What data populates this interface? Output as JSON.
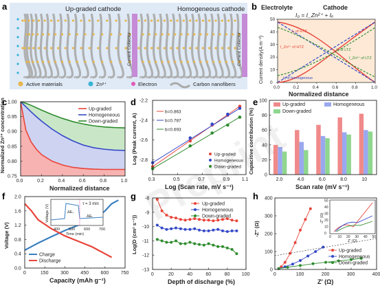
{
  "panel_labels": {
    "a": "a",
    "b": "b",
    "c": "c",
    "d": "d",
    "e": "e",
    "f": "f",
    "g": "g",
    "h": "h"
  },
  "panel_a": {
    "title_left": "Up-graded cathode",
    "title_right": "Homogeneous cathode",
    "collector_label": "Current Collector",
    "legend": [
      "Active materials",
      "Zn²⁺",
      "Electron",
      "Carbon nanofibers"
    ],
    "colors": {
      "background": "#dfeaf6",
      "fiber": "#a9a9a9",
      "active": "#e8b64c",
      "zn": "#37b4d6",
      "electron": "#e05ab8",
      "collector": "#c58bd6"
    }
  },
  "panel_b": {
    "header_left": "Electrolyte",
    "header_right": "Cathode",
    "equation": "I₀ = I_Zn²⁺ + Iₑ",
    "xlabel": "Normalized distance",
    "ylabel": "Current density(A m⁻²)",
    "curve_labels": [
      "Iₑ of HTZ",
      "I_Zn²⁺ of HTZ",
      "Iₑ of LTZ",
      "I_Zn²⁺ of LTZ",
      "Iₑ of homogenous",
      "I₀ of HTZ",
      "Iₑ of LTZ"
    ],
    "xticks": [
      "0.0",
      "0.2",
      "0.4",
      "0.6",
      "0.8",
      "1.0"
    ],
    "yticks": [
      "0",
      "10",
      "20",
      "30",
      "40",
      "50"
    ]
  },
  "chart_data": [
    {
      "panel": "c",
      "type": "area",
      "xlabel": "Normalized distance",
      "ylabel": "Normalized Zn²⁺ concentration",
      "xlim": [
        0,
        1.0
      ],
      "ylim": [
        0.75,
        1.0
      ],
      "xticks": [
        "0.0",
        "0.2",
        "0.4",
        "0.6",
        "0.8",
        "1.0"
      ],
      "yticks": [
        "0.75",
        "0.80",
        "0.85",
        "0.90",
        "0.95",
        "1.00"
      ],
      "legend": "top-right",
      "x": [
        0,
        0.05,
        0.1,
        0.15,
        0.2,
        0.3,
        0.4,
        0.5,
        0.6,
        0.7,
        0.8,
        0.9,
        1.0
      ],
      "series": [
        {
          "name": "Up-graded",
          "color": "#e8443a",
          "values": [
            1.0,
            0.905,
            0.865,
            0.84,
            0.822,
            0.8,
            0.787,
            0.779,
            0.775,
            0.773,
            0.772,
            0.772,
            0.772
          ]
        },
        {
          "name": "Homogeneous",
          "color": "#3348c8",
          "values": [
            1.0,
            0.983,
            0.966,
            0.95,
            0.935,
            0.908,
            0.886,
            0.868,
            0.854,
            0.845,
            0.84,
            0.837,
            0.836
          ]
        },
        {
          "name": "Down-graded",
          "color": "#2e8b2e",
          "values": [
            1.0,
            0.995,
            0.988,
            0.98,
            0.972,
            0.957,
            0.944,
            0.933,
            0.925,
            0.919,
            0.915,
            0.913,
            0.912
          ]
        }
      ]
    },
    {
      "panel": "d",
      "type": "scatter",
      "xlabel": "Log (Scan rate, mV s⁻¹)",
      "ylabel": "Log (Peak current, A)",
      "xlim": [
        0.3,
        1.05
      ],
      "ylim": [
        -2.95,
        -2.2
      ],
      "xticks": [
        "0.3",
        "0.5",
        "0.7",
        "0.9",
        "1.1"
      ],
      "yticks": [
        "-2.8",
        "-2.6",
        "-2.4",
        "-2.2"
      ],
      "x": [
        0.301,
        0.602,
        0.778,
        0.903,
        1.0
      ],
      "series": [
        {
          "name": "Up-graded",
          "color": "#e8443a",
          "b": "b=0.863",
          "values": [
            -2.87,
            -2.61,
            -2.45,
            -2.35,
            -2.26
          ]
        },
        {
          "name": "Homogeneous",
          "color": "#3348c8",
          "b": "b=0.787",
          "values": [
            -2.83,
            -2.58,
            -2.44,
            -2.34,
            -2.28
          ]
        },
        {
          "name": "Down-graded",
          "color": "#2e8b2e",
          "b": "b=0.693",
          "values": [
            -2.89,
            -2.66,
            -2.53,
            -2.45,
            -2.37
          ]
        }
      ]
    },
    {
      "panel": "e",
      "type": "bar",
      "xlabel": "Scan rate (mV s⁻¹)",
      "ylabel": "Capacitive contribution (%)",
      "ylim": [
        0,
        100
      ],
      "yticks": [
        "0",
        "20",
        "40",
        "60",
        "80",
        "100"
      ],
      "categories": [
        "2.0",
        "4.0",
        "6.0",
        "8.0",
        "10"
      ],
      "legend": "top",
      "series": [
        {
          "name": "Up-graded",
          "color": "#f08a8a",
          "values": [
            40,
            60,
            67,
            77,
            82
          ]
        },
        {
          "name": "Homogeneous",
          "color": "#9aa8ef",
          "values": [
            37,
            44,
            52,
            57,
            60
          ]
        },
        {
          "name": "Down-graded",
          "color": "#8fd68f",
          "values": [
            31,
            33,
            49,
            54,
            58
          ]
        }
      ]
    },
    {
      "panel": "f",
      "type": "line",
      "xlabel": "Capacity (mAh g⁻¹)",
      "ylabel": "Voltage (V)",
      "xlim": [
        0,
        750
      ],
      "ylim": [
        0.0,
        2.0
      ],
      "xticks": [
        "0",
        "150",
        "300",
        "450",
        "600",
        "750"
      ],
      "yticks": [
        "0.0",
        "0.4",
        "0.8",
        "1.2",
        "1.6",
        "2.0"
      ],
      "series": [
        {
          "name": "Charge",
          "color": "#3a7fbf",
          "x": [
            0,
            50,
            100,
            200,
            300,
            400,
            500,
            550,
            600,
            650,
            700
          ],
          "values": [
            0.5,
            0.6,
            0.7,
            0.88,
            1.05,
            1.2,
            1.35,
            1.45,
            1.6,
            1.8,
            1.9
          ]
        },
        {
          "name": "Discharge",
          "color": "#e8443a",
          "x": [
            0,
            50,
            100,
            200,
            300,
            400,
            500,
            550,
            600,
            650
          ],
          "values": [
            1.8,
            1.6,
            1.35,
            1.1,
            0.9,
            0.75,
            0.6,
            0.5,
            0.4,
            0.3
          ]
        }
      ],
      "inset": {
        "xlabel": "Time (min)",
        "ylabel": "Voltage (V)",
        "xticks": [
          "400",
          "500",
          "600",
          "700"
        ],
        "annotations": [
          "τ = 3 min",
          "ΔEₛ",
          "ΔEₜ"
        ]
      }
    },
    {
      "panel": "g",
      "type": "line",
      "xlabel": "Depth of discharge (%)",
      "ylabel": "Log(D (cm² s⁻¹))",
      "xlim": [
        0,
        100
      ],
      "ylim": [
        -13,
        -8
      ],
      "xticks": [
        "0",
        "20",
        "40",
        "60",
        "80",
        "100"
      ],
      "yticks": [
        "-13",
        "-12",
        "-11",
        "-10",
        "-9",
        "-8"
      ],
      "x": [
        5,
        10,
        15,
        20,
        25,
        30,
        35,
        40,
        45,
        50,
        55,
        60,
        65,
        70,
        75,
        80,
        85,
        90
      ],
      "series": [
        {
          "name": "Up-graded",
          "color": "#e8443a",
          "values": [
            -8.1,
            -8.9,
            -9.2,
            -9.35,
            -9.4,
            -9.5,
            -9.55,
            -9.5,
            -9.45,
            -9.5,
            -9.55,
            -9.55,
            -9.6,
            -9.55,
            -9.5,
            -9.45,
            -9.55,
            -9.6
          ]
        },
        {
          "name": "Homogeneous",
          "color": "#3348c8",
          "values": [
            -9.9,
            -10.1,
            -10.2,
            -10.15,
            -10.1,
            -10.15,
            -10.2,
            -10.2,
            -10.15,
            -10.25,
            -10.3,
            -10.3,
            -10.25,
            -10.2,
            -10.3,
            -10.35,
            -10.3,
            -10.3
          ]
        },
        {
          "name": "Down-graded",
          "color": "#2e8b2e",
          "values": [
            -10.9,
            -11.0,
            -11.1,
            -11.1,
            -11.0,
            -11.2,
            -11.2,
            -11.1,
            -11.2,
            -11.25,
            -11.3,
            -11.2,
            -11.3,
            -11.4,
            -11.4,
            -11.5,
            -11.6,
            -11.9
          ]
        }
      ]
    },
    {
      "panel": "h",
      "type": "scatter",
      "xlabel": "Z′ (Ω)",
      "ylabel": "-Z″ (Ω)",
      "xlim": [
        0,
        400
      ],
      "ylim": [
        0,
        400
      ],
      "xticks": [
        "0",
        "100",
        "200",
        "300",
        "400"
      ],
      "yticks": [
        "0",
        "100",
        "200",
        "300",
        "400"
      ],
      "legend": "bottom-right",
      "series": [
        {
          "name": "Up-graded",
          "color": "#e8443a",
          "x": [
            15,
            25,
            40,
            60,
            80,
            100,
            120,
            140
          ],
          "values": [
            5,
            15,
            40,
            90,
            150,
            220,
            280,
            340
          ]
        },
        {
          "name": "Homogeneous",
          "color": "#3348c8",
          "x": [
            15,
            40,
            70,
            100,
            130,
            160,
            190
          ],
          "values": [
            5,
            15,
            30,
            50,
            75,
            100,
            125
          ]
        },
        {
          "name": "Down-graded",
          "color": "#2e8b2e",
          "x": [
            15,
            50,
            100,
            150,
            200,
            250,
            300,
            340
          ],
          "values": [
            5,
            12,
            22,
            32,
            40,
            48,
            55,
            62
          ]
        }
      ],
      "inset": {
        "xlabel": "Z′ (Ω)",
        "ylabel": "-Z″ (Ω)",
        "xticks": [
          "0",
          "10",
          "20",
          "30",
          "40",
          "50"
        ],
        "yticks": [
          "0",
          "10",
          "20",
          "30",
          "40",
          "50"
        ]
      }
    }
  ],
  "watermark": "Preprint"
}
